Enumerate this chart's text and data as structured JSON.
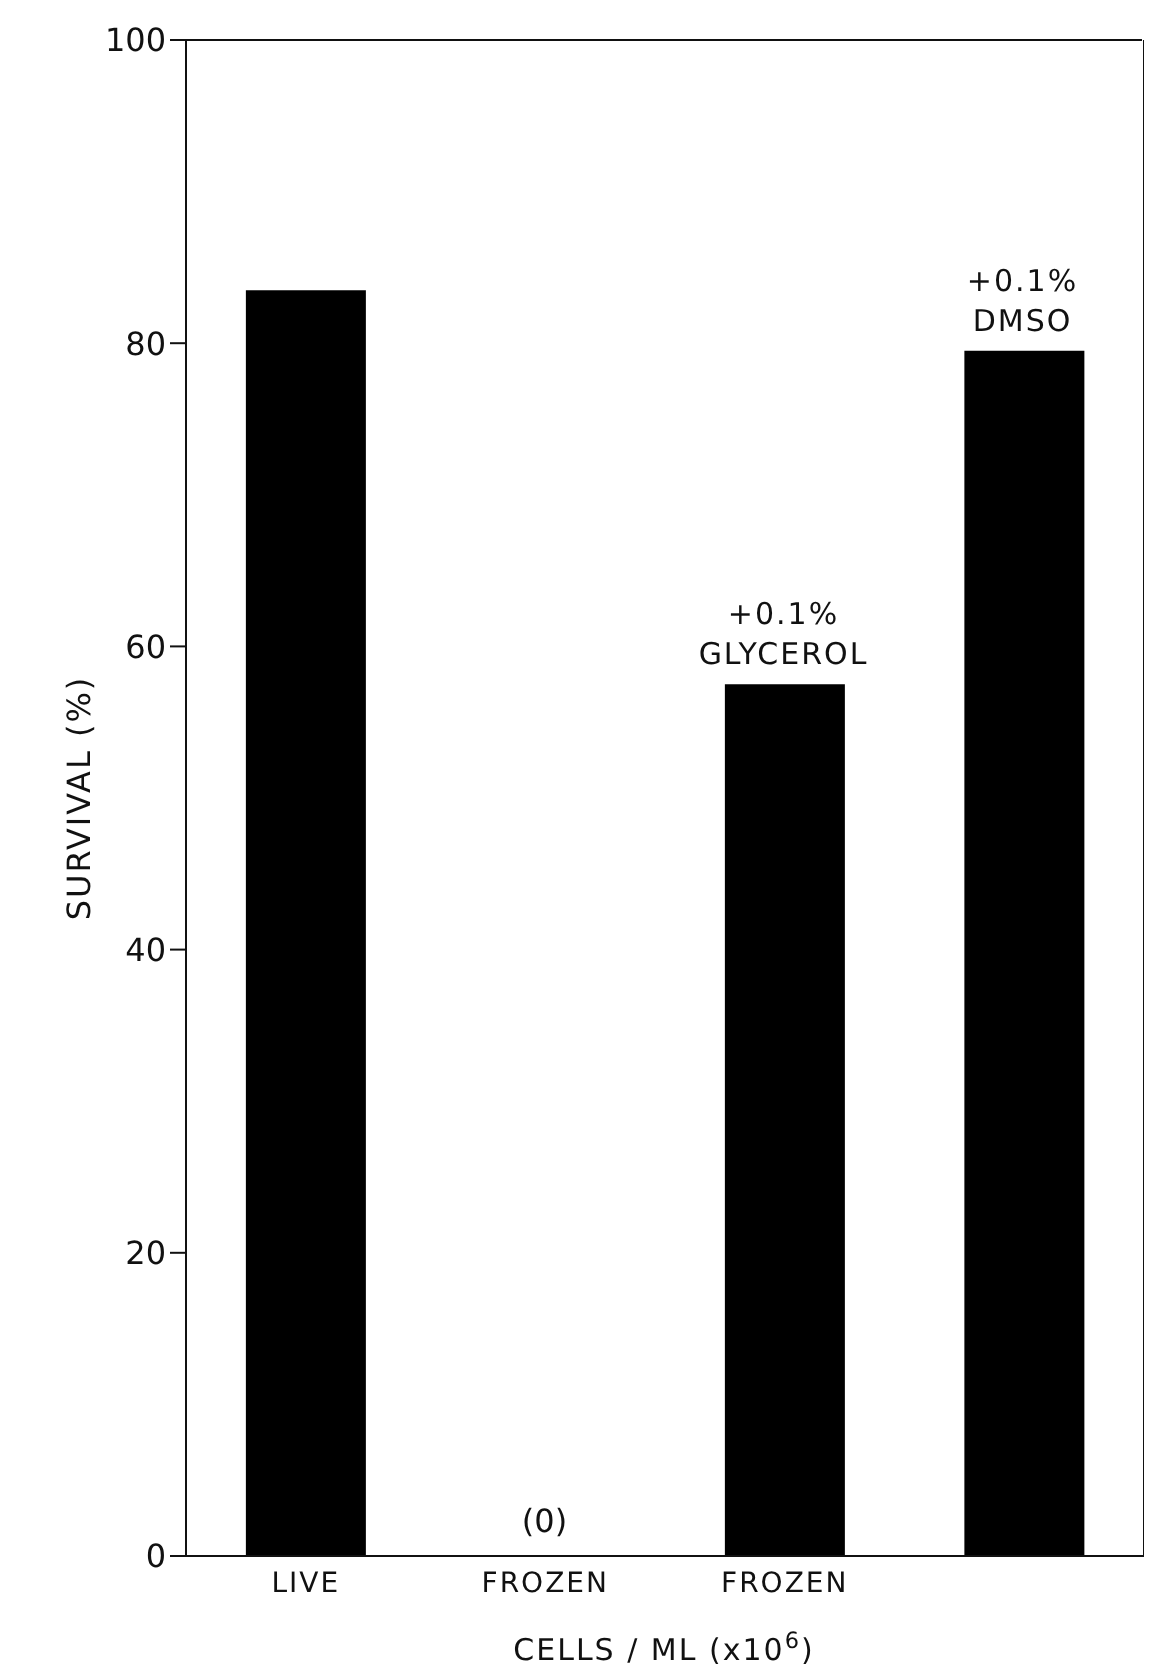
{
  "chart_data": {
    "type": "bar",
    "categories": [
      "LIVE",
      "FROZEN",
      "FROZEN",
      null
    ],
    "values": [
      83.5,
      0,
      57.5,
      79.5
    ],
    "color": "#000000",
    "value_labels": [
      null,
      "(0)",
      null,
      null
    ],
    "annotations": [
      "+0.1%\nGLYCEROL",
      "+0.1%\nDMSO"
    ],
    "ylabel": "SURVIVAL (%)",
    "xlabel": "CELLS / ML (x10$^{6}$)",
    "ylim": [
      0,
      100
    ],
    "yticks": [
      0,
      20,
      40,
      60,
      80,
      100
    ],
    "grid": false,
    "legend": false
  }
}
